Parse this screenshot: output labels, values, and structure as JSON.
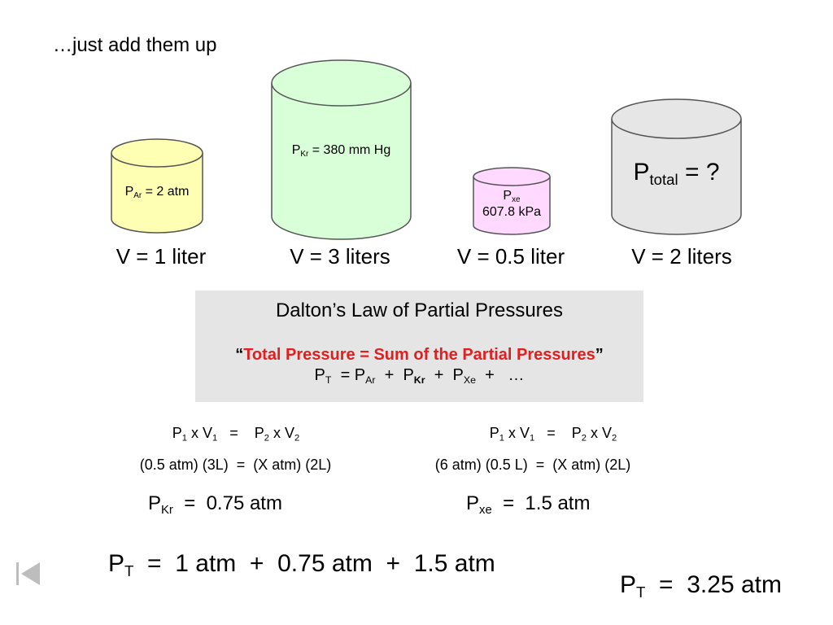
{
  "heading": "…just add them up",
  "cylinders": {
    "ar": {
      "label_main": "P",
      "label_sub": "Ar",
      "label_rest": " = 2 atm",
      "volume": "V = 1 liter",
      "fill": "#ffffb3"
    },
    "kr": {
      "label_main": "P",
      "label_sub": "Kr",
      "label_rest": " = 380 mm Hg",
      "volume": "V = 3 liters",
      "fill": "#d9ffd9"
    },
    "xe": {
      "label_main": "P",
      "label_sub": "xe",
      "label_line2": "607.8 kPa",
      "volume": "V = 0.5 liter",
      "fill": "#ffd9ff"
    },
    "total": {
      "label_main": "P",
      "label_sub": "total",
      "label_rest": " = ?",
      "volume": "V = 2 liters",
      "fill": "#e6e6e6"
    }
  },
  "law": {
    "title": "Dalton’s Law of Partial Pressures",
    "quote_open": "“",
    "quote_text": "Total Pressure  =  Sum of the Partial Pressures",
    "quote_close": "”",
    "formula": {
      "p": "P",
      "t": "T",
      "eq": "  = P",
      "ar": "Ar",
      "plus1": "  +  P",
      "kr": "Kr",
      "plus2": "  +  P",
      "xe": "Xe",
      "tail": "  +   …"
    },
    "box_color": "#e5e5e5",
    "accent_color": "#e02020"
  },
  "calc_left": {
    "p1": "P",
    "s1": "1",
    "x1": " x V",
    "s2": "1",
    "mid": "   =    P",
    "s3": "2",
    "x2": " x V",
    "s4": "2",
    "line2": "(0.5 atm) (3L)  =  (X atm) (2L)",
    "res_p": "P",
    "res_sub": "Kr",
    "res_val": "  =  0.75 atm"
  },
  "calc_right": {
    "p1": "P",
    "s1": "1",
    "x1": " x V",
    "s2": "1",
    "mid": "   =    P",
    "s3": "2",
    "x2": " x V",
    "s4": "2",
    "line2": "(6 atm) (0.5 L)  =  (X atm) (2L)",
    "res_p": "P",
    "res_sub": "xe",
    "res_val": "  =  1.5 atm"
  },
  "sum": {
    "p": "P",
    "sub": "T",
    "rest": "  =  1 atm  +  0.75 atm  +  1.5 atm"
  },
  "answer": {
    "p": "P",
    "sub": "T",
    "rest": "  =  3.25 atm"
  },
  "nav": {
    "back_icon": "skip-back-icon"
  }
}
